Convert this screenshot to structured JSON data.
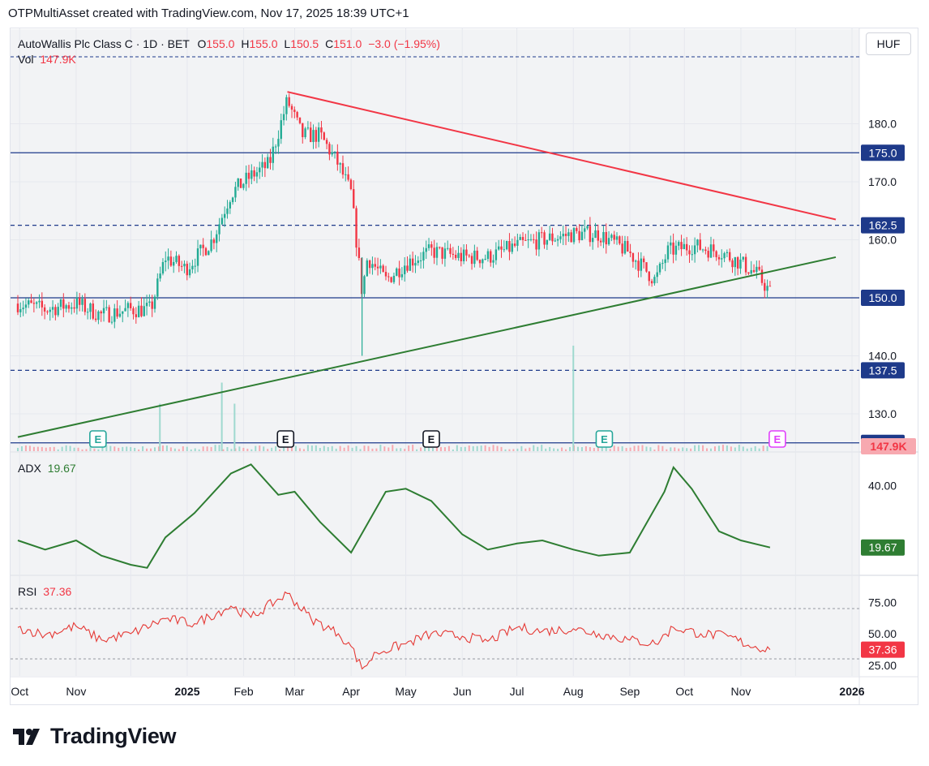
{
  "header": {
    "credit": "OTPMultiAsset created with TradingView.com, Nov 17, 2025 18:39 UTC+1"
  },
  "legend": {
    "symbol": "AutoWallis Plc Class C · 1D · BET",
    "open_label": "O",
    "open": "155.0",
    "high_label": "H",
    "high": "155.0",
    "low_label": "L",
    "low": "150.5",
    "close_label": "C",
    "close": "151.0",
    "change": "−3.0 (−1.95%)",
    "vol_label": "Vol",
    "vol": "147.9K",
    "adx_label": "ADX",
    "adx": "19.67",
    "rsi_label": "RSI",
    "rsi": "37.36"
  },
  "currency_button": "HUF",
  "brand": {
    "name": "TradingView"
  },
  "colors": {
    "up": "#22ab94",
    "down": "#f23645",
    "level": "#1e3a8a",
    "resistance": "#f23645",
    "support": "#2e7d32",
    "adx": "#2e7d32",
    "rsi": "#e53935"
  },
  "chart_data": {
    "type": "candlestick",
    "price_axis": {
      "ylim": [
        122,
        188
      ],
      "ticks": [
        130.0,
        140.0,
        150.0,
        160.0,
        170.0,
        180.0
      ]
    },
    "x_labels": [
      "Oct",
      "Nov",
      "2025",
      "Feb",
      "Mar",
      "Apr",
      "May",
      "Jun",
      "Jul",
      "Aug",
      "Sep",
      "Oct",
      "Nov",
      "2026"
    ],
    "levels": [
      {
        "value": 175.0,
        "style": "solid",
        "label": "175.0"
      },
      {
        "value": 162.5,
        "style": "dashed",
        "label": "162.5"
      },
      {
        "value": 150.0,
        "style": "solid",
        "label": "150.0"
      },
      {
        "value": 137.5,
        "style": "dashed",
        "label": "137.5"
      },
      {
        "value": 125.0,
        "style": "solid",
        "label": "125.0"
      }
    ],
    "trendlines": [
      {
        "name": "resistance",
        "from": {
          "date": "2025-02-25",
          "price": 185.5
        },
        "to": {
          "date": "2026-01-01",
          "price": 163.5
        }
      },
      {
        "name": "support",
        "from": {
          "date": "2024-09-30",
          "price": 126.0
        },
        "to": {
          "date": "2026-01-01",
          "price": 157.0
        }
      }
    ],
    "price_path": [
      [
        "2024-09-30",
        149
      ],
      [
        "2024-10-15",
        148
      ],
      [
        "2024-11-01",
        149
      ],
      [
        "2024-11-15",
        147
      ],
      [
        "2024-12-01",
        148
      ],
      [
        "2024-12-12",
        148
      ],
      [
        "2024-12-20",
        157
      ],
      [
        "2024-12-31",
        155
      ],
      [
        "2025-01-15",
        160
      ],
      [
        "2025-01-25",
        168
      ],
      [
        "2025-02-05",
        171
      ],
      [
        "2025-02-15",
        173
      ],
      [
        "2025-02-25",
        184
      ],
      [
        "2025-03-05",
        178
      ],
      [
        "2025-03-15",
        178
      ],
      [
        "2025-03-25",
        173
      ],
      [
        "2025-04-01",
        168
      ],
      [
        "2025-04-07",
        151
      ],
      [
        "2025-04-10",
        157
      ],
      [
        "2025-04-20",
        153
      ],
      [
        "2025-05-01",
        156
      ],
      [
        "2025-05-15",
        158
      ],
      [
        "2025-06-01",
        157
      ],
      [
        "2025-06-15",
        157
      ],
      [
        "2025-07-01",
        159
      ],
      [
        "2025-07-15",
        160
      ],
      [
        "2025-08-01",
        161
      ],
      [
        "2025-08-15",
        161
      ],
      [
        "2025-08-31",
        158
      ],
      [
        "2025-09-15",
        153
      ],
      [
        "2025-09-22",
        158
      ],
      [
        "2025-10-05",
        159
      ],
      [
        "2025-10-20",
        158
      ],
      [
        "2025-11-01",
        156
      ],
      [
        "2025-11-10",
        154
      ],
      [
        "2025-11-17",
        151
      ]
    ],
    "volume_spikes": [
      [
        "2024-12-17",
        0.45
      ],
      [
        "2025-01-20",
        0.65
      ],
      [
        "2025-01-27",
        0.45
      ],
      [
        "2025-08-01",
        1.0
      ]
    ],
    "volume_last": "147.9K",
    "earnings_markers": [
      {
        "date": "2024-11-13",
        "style": "green"
      },
      {
        "date": "2025-02-24",
        "style": "dark"
      },
      {
        "date": "2025-05-15",
        "style": "dark"
      },
      {
        "date": "2025-08-18",
        "style": "green"
      },
      {
        "date": "2025-11-21",
        "style": "upcoming"
      }
    ],
    "adx": {
      "ticks": [
        40.0
      ],
      "ylim": [
        10,
        50
      ],
      "last": 19.67,
      "path": [
        [
          "2024-09-30",
          22
        ],
        [
          "2024-10-15",
          19
        ],
        [
          "2024-11-01",
          22
        ],
        [
          "2024-11-15",
          17
        ],
        [
          "2024-12-01",
          14
        ],
        [
          "2024-12-10",
          13
        ],
        [
          "2024-12-20",
          23
        ],
        [
          "2025-01-05",
          31
        ],
        [
          "2025-01-25",
          44
        ],
        [
          "2025-02-05",
          47
        ],
        [
          "2025-02-20",
          37
        ],
        [
          "2025-03-01",
          38
        ],
        [
          "2025-03-15",
          28
        ],
        [
          "2025-04-01",
          18
        ],
        [
          "2025-04-20",
          38
        ],
        [
          "2025-05-01",
          39
        ],
        [
          "2025-05-15",
          35
        ],
        [
          "2025-06-01",
          24
        ],
        [
          "2025-06-15",
          19
        ],
        [
          "2025-07-01",
          21
        ],
        [
          "2025-07-15",
          22
        ],
        [
          "2025-08-01",
          19
        ],
        [
          "2025-08-15",
          17
        ],
        [
          "2025-09-01",
          18
        ],
        [
          "2025-09-20",
          38
        ],
        [
          "2025-09-25",
          46
        ],
        [
          "2025-10-05",
          39
        ],
        [
          "2025-10-20",
          25
        ],
        [
          "2025-11-01",
          22
        ],
        [
          "2025-11-17",
          19.67
        ]
      ]
    },
    "rsi": {
      "ticks": [
        25.0,
        50.0,
        75.0
      ],
      "bands": [
        70,
        30
      ],
      "ylim": [
        15,
        90
      ],
      "last": 37.36,
      "path": [
        [
          "2024-09-30",
          55
        ],
        [
          "2024-10-15",
          49
        ],
        [
          "2024-11-01",
          56
        ],
        [
          "2024-11-15",
          45
        ],
        [
          "2024-12-01",
          50
        ],
        [
          "2024-12-20",
          62
        ],
        [
          "2025-01-05",
          58
        ],
        [
          "2025-01-25",
          72
        ],
        [
          "2025-02-05",
          63
        ],
        [
          "2025-02-25",
          82
        ],
        [
          "2025-03-10",
          62
        ],
        [
          "2025-03-25",
          50
        ],
        [
          "2025-04-01",
          40
        ],
        [
          "2025-04-07",
          22
        ],
        [
          "2025-04-15",
          35
        ],
        [
          "2025-05-01",
          42
        ],
        [
          "2025-05-15",
          50
        ],
        [
          "2025-06-01",
          48
        ],
        [
          "2025-06-15",
          44
        ],
        [
          "2025-07-01",
          55
        ],
        [
          "2025-07-15",
          52
        ],
        [
          "2025-08-01",
          54
        ],
        [
          "2025-08-15",
          50
        ],
        [
          "2025-09-01",
          45
        ],
        [
          "2025-09-15",
          42
        ],
        [
          "2025-09-25",
          55
        ],
        [
          "2025-10-10",
          50
        ],
        [
          "2025-10-25",
          48
        ],
        [
          "2025-11-05",
          41
        ],
        [
          "2025-11-17",
          37.36
        ]
      ]
    }
  }
}
